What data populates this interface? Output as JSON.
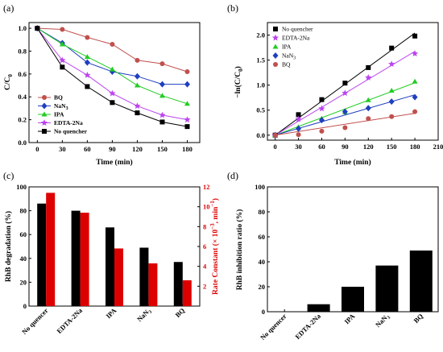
{
  "chart_data": [
    {
      "panel": "(a)",
      "type": "line",
      "xlabel": "Time (min)",
      "ylabel": "C/C0",
      "xlim": [
        -10,
        195
      ],
      "ylim": [
        0.0,
        1.05
      ],
      "xticks": [
        0,
        30,
        60,
        90,
        120,
        150,
        180
      ],
      "yticks": [
        0.0,
        0.2,
        0.4,
        0.6,
        0.8,
        1.0
      ],
      "x": [
        0,
        30,
        60,
        90,
        120,
        150,
        180
      ],
      "legend_position": "bottom-left",
      "series": [
        {
          "name": "BQ",
          "color": "#c0504d",
          "marker": "circle",
          "values": [
            1.0,
            0.99,
            0.92,
            0.86,
            0.72,
            0.69,
            0.62
          ]
        },
        {
          "name": "NaN3",
          "color": "#1f3fbf",
          "marker": "diamond",
          "values": [
            1.0,
            0.87,
            0.7,
            0.62,
            0.58,
            0.51,
            0.51
          ]
        },
        {
          "name": "IPA",
          "color": "#22cc22",
          "marker": "triangle",
          "values": [
            1.0,
            0.86,
            0.75,
            0.64,
            0.5,
            0.41,
            0.34
          ]
        },
        {
          "name": "EDTA-2Na",
          "color": "#bb44ee",
          "marker": "star",
          "values": [
            1.0,
            0.72,
            0.59,
            0.43,
            0.32,
            0.24,
            0.2
          ]
        },
        {
          "name": "No quencher",
          "color": "#000000",
          "marker": "square",
          "values": [
            1.0,
            0.66,
            0.49,
            0.35,
            0.26,
            0.18,
            0.14
          ]
        }
      ]
    },
    {
      "panel": "(b)",
      "type": "scatter",
      "xlabel": "Time (min)",
      "ylabel": "-ln(C/C0)",
      "xlim": [
        -10,
        210
      ],
      "ylim": [
        -0.1,
        2.25
      ],
      "xticks": [
        0,
        30,
        60,
        90,
        120,
        150,
        180,
        210
      ],
      "yticks": [
        0.0,
        0.5,
        1.0,
        1.5,
        2.0
      ],
      "x": [
        0,
        30,
        60,
        90,
        120,
        150,
        180
      ],
      "legend_position": "top-left",
      "series": [
        {
          "name": "No quencher",
          "color": "#000000",
          "marker": "square",
          "values": [
            0.0,
            0.41,
            0.71,
            1.04,
            1.35,
            1.74,
            1.98
          ]
        },
        {
          "name": "EDTA-2Na",
          "color": "#bb44ee",
          "marker": "star",
          "values": [
            0.0,
            0.32,
            0.53,
            0.84,
            1.15,
            1.42,
            1.63
          ]
        },
        {
          "name": "IPA",
          "color": "#22cc22",
          "marker": "triangle",
          "values": [
            0.0,
            0.16,
            0.33,
            0.46,
            0.7,
            0.89,
            1.07
          ]
        },
        {
          "name": "NaN3",
          "color": "#1f3fbf",
          "marker": "diamond",
          "values": [
            0.0,
            0.13,
            0.3,
            0.47,
            0.54,
            0.67,
            0.76
          ]
        },
        {
          "name": "BQ",
          "color": "#c0504d",
          "marker": "circle",
          "values": [
            0.0,
            0.01,
            0.08,
            0.15,
            0.33,
            0.37,
            0.47
          ]
        }
      ]
    },
    {
      "panel": "(c)",
      "type": "bar",
      "ylabel": "RhB degradation (%)",
      "y2label": "Rate Constant (×10−3, min−1)",
      "ylim": [
        0,
        100
      ],
      "y2lim": [
        0,
        12
      ],
      "yticks": [
        0,
        20,
        40,
        60,
        80,
        100
      ],
      "y2ticks": [
        2,
        4,
        6,
        8,
        10,
        12
      ],
      "categories": [
        "No quencer",
        "EDTA-2Na",
        "IPA",
        "NaN3",
        "BQ"
      ],
      "series": [
        {
          "name": "RhB degradation",
          "axis": "left",
          "color": "#000000",
          "values": [
            86,
            80,
            66,
            49,
            37
          ]
        },
        {
          "name": "Rate constant",
          "axis": "right",
          "color": "#dd0000",
          "values": [
            11.4,
            9.4,
            5.8,
            4.3,
            2.6
          ]
        }
      ]
    },
    {
      "panel": "(d)",
      "type": "bar",
      "ylabel": "RhB inhibition ratio (%)",
      "ylim": [
        0,
        100
      ],
      "yticks": [
        0,
        20,
        40,
        60,
        80,
        100
      ],
      "categories": [
        "No quencer",
        "EDTA-2Na",
        "IPA",
        "NaN3",
        "BQ"
      ],
      "series": [
        {
          "name": "RhB inhibition ratio",
          "color": "#000000",
          "values": [
            0,
            6,
            20,
            37,
            49
          ]
        }
      ]
    }
  ],
  "labels": {
    "a": {
      "panel": "(a)",
      "y_main": "C/C",
      "y_sub": "0"
    },
    "b": {
      "panel": "(b)",
      "y_main": "−ln(C/C",
      "y_sub": "0",
      "y_end": ")",
      "leg": [
        "No quencher",
        "EDTA-2Na",
        "IPA",
        "NaN",
        "BQ"
      ],
      "leg_sub": "3"
    },
    "c": {
      "panel": "(c)",
      "y2_pre": "Rate Constant (",
      "y2_times": "× 10",
      "y2_exp": "−3",
      "y2_mid": ", min",
      "y2_exp2": "−1",
      "y2_end": ")"
    },
    "d": {
      "panel": "(d)"
    },
    "nan3_base": "NaN",
    "nan3_sub": "3"
  }
}
